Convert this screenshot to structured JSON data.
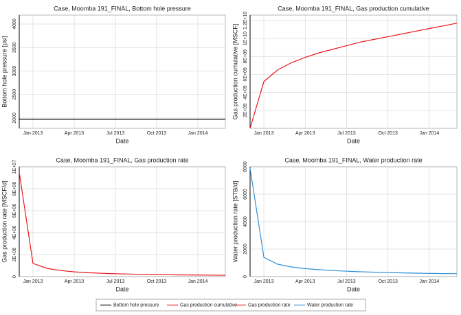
{
  "chart_data": [
    {
      "type": "line",
      "title": "Case, Moomba 191_FINAL, Bottom hole pressure",
      "xlabel": "Date",
      "ylabel": "Bottom hole pressure [psi]",
      "x": [
        "2012-12",
        "2013-01",
        "2013-02",
        "2013-03",
        "2013-04",
        "2013-05",
        "2013-06",
        "2013-07",
        "2013-08",
        "2013-09",
        "2013-10",
        "2013-11",
        "2013-12",
        "2014-01",
        "2014-02",
        "2014-03"
      ],
      "series": [
        {
          "name": "Bottom hole pressure",
          "color": "#000000",
          "values": [
            1975,
            1975,
            1975,
            1975,
            1975,
            1975,
            1975,
            1975,
            1975,
            1975,
            1975,
            1975,
            1975,
            1975,
            1975,
            1975
          ]
        }
      ],
      "xlim": [
        "2012-12",
        "2014-03"
      ],
      "xticks": [
        {
          "value": "2013-01",
          "label": "Jan 2013"
        },
        {
          "value": "2013-04",
          "label": "Apr 2013"
        },
        {
          "value": "2013-07",
          "label": "Jul 2013"
        },
        {
          "value": "2013-10",
          "label": "Oct 2013"
        },
        {
          "value": "2014-01",
          "label": "Jan 2014"
        }
      ],
      "ylim": [
        1780,
        4190
      ],
      "yticks": [
        2000,
        2500,
        3000,
        3500,
        4000
      ],
      "grid": true
    },
    {
      "type": "line",
      "title": "Case, Moomba 191_FINAL, Gas production cumulative",
      "xlabel": "Date",
      "ylabel": "Gas production cumulative [MSCF]",
      "x": [
        "2012-12",
        "2013-01",
        "2013-02",
        "2013-03",
        "2013-04",
        "2013-05",
        "2013-06",
        "2013-07",
        "2013-08",
        "2013-09",
        "2013-10",
        "2013-11",
        "2013-12",
        "2014-01",
        "2014-02",
        "2014-03"
      ],
      "series": [
        {
          "name": "Gas production cumulative",
          "color": "#e8161b",
          "values": [
            0,
            5200000000,
            6500000000,
            7300000000,
            7900000000,
            8400000000,
            8800000000,
            9200000000,
            9600000000,
            9900000000,
            10200000000,
            10500000000,
            10800000000,
            11100000000,
            11400000000,
            11700000000
          ]
        }
      ],
      "xlim": [
        "2012-12",
        "2014-03"
      ],
      "xticks": [
        {
          "value": "2013-01",
          "label": "Jan 2013"
        },
        {
          "value": "2013-04",
          "label": "Apr 2013"
        },
        {
          "value": "2013-07",
          "label": "Jul 2013"
        },
        {
          "value": "2013-10",
          "label": "Oct 2013"
        },
        {
          "value": "2014-01",
          "label": "Jan 2014"
        }
      ],
      "ylim": [
        0,
        12600000000
      ],
      "yticks": [
        {
          "value": 2000000000,
          "label": "2E+09"
        },
        {
          "value": 4000000000,
          "label": "4E+09"
        },
        {
          "value": 6000000000,
          "label": "6E+09"
        },
        {
          "value": 8000000000,
          "label": "8E+09"
        },
        {
          "value": 10000000000,
          "label": "1E+10"
        },
        {
          "value": 12000000000,
          "label": "1.2E+10"
        }
      ],
      "grid": true
    },
    {
      "type": "line",
      "title": "Case, Moomba 191_FINAL, Gas production rate",
      "xlabel": "Date",
      "ylabel": "Gas production rate [MSCF/d]",
      "x": [
        "2012-12",
        "2013-01",
        "2013-02",
        "2013-03",
        "2013-04",
        "2013-05",
        "2013-06",
        "2013-07",
        "2013-08",
        "2013-09",
        "2013-10",
        "2013-11",
        "2013-12",
        "2014-01",
        "2014-02",
        "2014-03"
      ],
      "series": [
        {
          "name": "Gas production rate",
          "color": "#e8161b",
          "values": [
            9500000,
            1200000,
            750000,
            550000,
            430000,
            350000,
            300000,
            260000,
            230000,
            200000,
            180000,
            160000,
            150000,
            140000,
            130000,
            120000
          ]
        }
      ],
      "xlim": [
        "2012-12",
        "2014-03"
      ],
      "xticks": [
        {
          "value": "2013-01",
          "label": "Jan 2013"
        },
        {
          "value": "2013-04",
          "label": "Apr 2013"
        },
        {
          "value": "2013-07",
          "label": "Jul 2013"
        },
        {
          "value": "2013-10",
          "label": "Oct 2013"
        },
        {
          "value": "2014-01",
          "label": "Jan 2014"
        }
      ],
      "ylim": [
        0,
        10000000
      ],
      "yticks": [
        0,
        {
          "value": 2000000,
          "label": "2E+06"
        },
        {
          "value": 4000000,
          "label": "4E+06"
        },
        {
          "value": 6000000,
          "label": "6E+06"
        },
        {
          "value": 8000000,
          "label": "8E+06"
        },
        {
          "value": 10000000,
          "label": "1E+07"
        }
      ],
      "grid": true
    },
    {
      "type": "line",
      "title": "Case, Moomba 191_FINAL, Water production rate",
      "xlabel": "Date",
      "ylabel": "Water production rate [STB/d]",
      "x": [
        "2012-12",
        "2013-01",
        "2013-02",
        "2013-03",
        "2013-04",
        "2013-05",
        "2013-06",
        "2013-07",
        "2013-08",
        "2013-09",
        "2013-10",
        "2013-11",
        "2013-12",
        "2014-01",
        "2014-02",
        "2014-03"
      ],
      "series": [
        {
          "name": "Water production rate",
          "color": "#2f8fd8",
          "values": [
            7900,
            1400,
            900,
            700,
            580,
            500,
            440,
            390,
            350,
            320,
            290,
            270,
            250,
            235,
            220,
            210
          ]
        }
      ],
      "xlim": [
        "2012-12",
        "2014-03"
      ],
      "xticks": [
        {
          "value": "2013-01",
          "label": "Jan 2013"
        },
        {
          "value": "2013-04",
          "label": "Apr 2013"
        },
        {
          "value": "2013-07",
          "label": "Jul 2013"
        },
        {
          "value": "2013-10",
          "label": "Oct 2013"
        },
        {
          "value": "2014-01",
          "label": "Jan 2014"
        }
      ],
      "ylim": [
        0,
        8000
      ],
      "yticks": [
        0,
        2000,
        4000,
        6000,
        8000
      ],
      "grid": true
    }
  ]
}
